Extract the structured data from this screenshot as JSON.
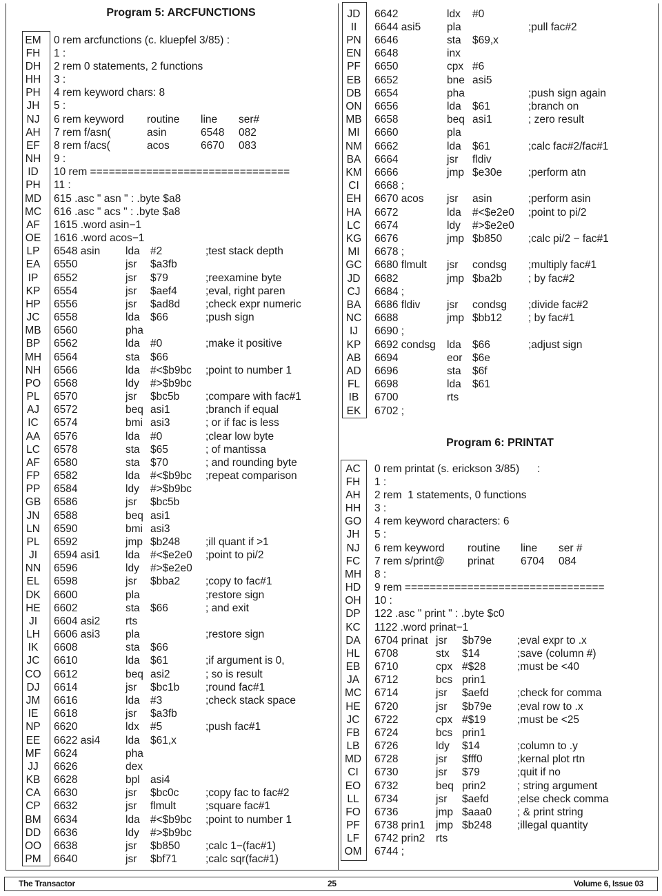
{
  "program5": {
    "title": "Program 5: ARCFUNCTIONS",
    "rows": [
      {
        "code": "EM",
        "text": "0 rem arcfunctions (c. kluepfel 3/85) :"
      },
      {
        "code": "FH",
        "text": "1 :"
      },
      {
        "code": "DH",
        "text": "2 rem 0 statements, 2 functions"
      },
      {
        "code": "HH",
        "text": "3 :"
      },
      {
        "code": "PH",
        "text": "4 rem keyword chars: 8"
      },
      {
        "code": "JH",
        "text": "5 :"
      },
      {
        "code": "NJ",
        "table": [
          "6 rem keyword",
          "routine",
          "line",
          "ser#"
        ]
      },
      {
        "code": "AH",
        "table": [
          "7 rem f/asn(",
          "asin",
          "6548",
          "082"
        ]
      },
      {
        "code": "EF",
        "table": [
          "8 rem f/acs(",
          "acos",
          "6670",
          "083"
        ]
      },
      {
        "code": "NH",
        "text": "9 :"
      },
      {
        "code": "ID",
        "text": "10 rem ================================"
      },
      {
        "code": "PH",
        "text": "11 :"
      },
      {
        "code": "MD",
        "text": "615 .asc \" asn \" : .byte $a8"
      },
      {
        "code": "MC",
        "text": "616 .asc \" acs \" : .byte $a8"
      },
      {
        "code": "AF",
        "text": "1615 .word asin−1"
      },
      {
        "code": "OE",
        "text": "1616 .word acos−1"
      },
      {
        "code": "LP",
        "asm": [
          "6548 asin",
          "lda",
          "#2",
          ";test stack depth"
        ]
      },
      {
        "code": "EA",
        "asm": [
          "6550",
          "jsr",
          "$a3fb",
          ""
        ]
      },
      {
        "code": "IP",
        "asm": [
          "6552",
          "jsr",
          "$79",
          ";reexamine byte"
        ]
      },
      {
        "code": "KP",
        "asm": [
          "6554",
          "jsr",
          "$aef4",
          ";eval, right paren"
        ]
      },
      {
        "code": "HP",
        "asm": [
          "6556",
          "jsr",
          "$ad8d",
          ";check expr numeric"
        ]
      },
      {
        "code": "JC",
        "asm": [
          "6558",
          "lda",
          "$66",
          ";push sign"
        ]
      },
      {
        "code": "MB",
        "asm": [
          "6560",
          "pha",
          "",
          ""
        ]
      },
      {
        "code": "BP",
        "asm": [
          "6562",
          "lda",
          "#0",
          ";make it positive"
        ]
      },
      {
        "code": "MH",
        "asm": [
          "6564",
          "sta",
          "$66",
          ""
        ]
      },
      {
        "code": "NH",
        "asm": [
          "6566",
          "lda",
          "#<$b9bc",
          ";point to number 1"
        ]
      },
      {
        "code": "PO",
        "asm": [
          "6568",
          "ldy",
          "#>$b9bc",
          ""
        ]
      },
      {
        "code": "PL",
        "asm": [
          "6570",
          "jsr",
          "$bc5b",
          ";compare with fac#1"
        ]
      },
      {
        "code": "AJ",
        "asm": [
          "6572",
          "beq",
          "asi1",
          ";branch if equal"
        ]
      },
      {
        "code": "IC",
        "asm": [
          "6574",
          "bmi",
          "asi3",
          "; or if fac is less"
        ]
      },
      {
        "code": "AA",
        "asm": [
          "6576",
          "lda",
          "#0",
          ";clear low byte"
        ]
      },
      {
        "code": "LC",
        "asm": [
          "6578",
          "sta",
          "$65",
          "; of mantissa"
        ]
      },
      {
        "code": "AF",
        "asm": [
          "6580",
          "sta",
          "$70",
          "; and rounding byte"
        ]
      },
      {
        "code": "FP",
        "asm": [
          "6582",
          "lda",
          "#<$b9bc",
          ";repeat comparison"
        ]
      },
      {
        "code": "PP",
        "asm": [
          "6584",
          "ldy",
          "#>$b9bc",
          ""
        ]
      },
      {
        "code": "GB",
        "asm": [
          "6586",
          "jsr",
          "$bc5b",
          ""
        ]
      },
      {
        "code": "JN",
        "asm": [
          "6588",
          "beq",
          "asi1",
          ""
        ]
      },
      {
        "code": "LN",
        "asm": [
          "6590",
          "bmi",
          "asi3",
          ""
        ]
      },
      {
        "code": "PL",
        "asm": [
          "6592",
          "jmp",
          "$b248",
          ";ill quant if >1"
        ]
      },
      {
        "code": "JI",
        "asm": [
          "6594 asi1",
          "lda",
          "#<$e2e0",
          ";point to pi/2"
        ]
      },
      {
        "code": "NN",
        "asm": [
          "6596",
          "ldy",
          "#>$e2e0",
          ""
        ]
      },
      {
        "code": "EL",
        "asm": [
          "6598",
          "jsr",
          "$bba2",
          ";copy to fac#1"
        ]
      },
      {
        "code": "DK",
        "asm": [
          "6600",
          "pla",
          "",
          ";restore sign"
        ]
      },
      {
        "code": "HE",
        "asm": [
          "6602",
          "sta",
          "$66",
          "; and exit"
        ]
      },
      {
        "code": "JI",
        "asm": [
          "6604 asi2",
          "rts",
          "",
          ""
        ]
      },
      {
        "code": "LH",
        "asm": [
          "6606 asi3",
          "pla",
          "",
          ";restore sign"
        ]
      },
      {
        "code": "IK",
        "asm": [
          "6608",
          "sta",
          "$66",
          ""
        ]
      },
      {
        "code": "JC",
        "asm": [
          "6610",
          "lda",
          "$61",
          ";if argument is 0,"
        ]
      },
      {
        "code": "CO",
        "asm": [
          "6612",
          "beq",
          "asi2",
          "; so is result"
        ]
      },
      {
        "code": "DJ",
        "asm": [
          "6614",
          "jsr",
          "$bc1b",
          ";round fac#1"
        ]
      },
      {
        "code": "JM",
        "asm": [
          "6616",
          "lda",
          "#3",
          ";check stack space"
        ]
      },
      {
        "code": "IE",
        "asm": [
          "6618",
          "jsr",
          "$a3fb",
          ""
        ]
      },
      {
        "code": "NP",
        "asm": [
          "6620",
          "ldx",
          "#5",
          ";push fac#1"
        ]
      },
      {
        "code": "EE",
        "asm": [
          "6622 asi4",
          "lda",
          "$61,x",
          ""
        ]
      },
      {
        "code": "MF",
        "asm": [
          "6624",
          "pha",
          "",
          ""
        ]
      },
      {
        "code": "JJ",
        "asm": [
          "6626",
          "dex",
          "",
          ""
        ]
      },
      {
        "code": "KB",
        "asm": [
          "6628",
          "bpl",
          "asi4",
          ""
        ]
      },
      {
        "code": "CA",
        "asm": [
          "6630",
          "jsr",
          "$bc0c",
          ";copy fac to fac#2"
        ]
      },
      {
        "code": "CP",
        "asm": [
          "6632",
          "jsr",
          "flmult",
          ";square fac#1"
        ]
      },
      {
        "code": "BM",
        "asm": [
          "6634",
          "lda",
          "#<$b9bc",
          ";point to number 1"
        ]
      },
      {
        "code": "DD",
        "asm": [
          "6636",
          "ldy",
          "#>$b9bc",
          ""
        ]
      },
      {
        "code": "OO",
        "asm": [
          "6638",
          "jsr",
          "$b850",
          ";calc 1−(fac#1)"
        ]
      },
      {
        "code": "PM",
        "asm": [
          "6640",
          "jsr",
          "$bf71",
          ";calc sqr(fac#1)"
        ]
      }
    ],
    "continued_rows": [
      {
        "code": "JD",
        "asm": [
          "6642",
          "ldx",
          "#0",
          ""
        ]
      },
      {
        "code": "II",
        "asm": [
          "6644 asi5",
          "pla",
          "",
          ";pull fac#2"
        ]
      },
      {
        "code": "PN",
        "asm": [
          "6646",
          "sta",
          "$69,x",
          ""
        ]
      },
      {
        "code": "EN",
        "asm": [
          "6648",
          "inx",
          "",
          ""
        ]
      },
      {
        "code": "PF",
        "asm": [
          "6650",
          "cpx",
          "#6",
          ""
        ]
      },
      {
        "code": "EB",
        "asm": [
          "6652",
          "bne",
          "asi5",
          ""
        ]
      },
      {
        "code": "DB",
        "asm": [
          "6654",
          "pha",
          "",
          ";push sign again"
        ]
      },
      {
        "code": "ON",
        "asm": [
          "6656",
          "lda",
          "$61",
          ";branch on"
        ]
      },
      {
        "code": "MB",
        "asm": [
          "6658",
          "beq",
          "asi1",
          "; zero result"
        ]
      },
      {
        "code": "MI",
        "asm": [
          "6660",
          "pla",
          "",
          ""
        ]
      },
      {
        "code": "NM",
        "asm": [
          "6662",
          "lda",
          "$61",
          ";calc fac#2/fac#1"
        ]
      },
      {
        "code": "BA",
        "asm": [
          "6664",
          "jsr",
          "fldiv",
          ""
        ]
      },
      {
        "code": "KM",
        "asm": [
          "6666",
          "jmp",
          "$e30e",
          ";perform atn"
        ]
      },
      {
        "code": "CI",
        "text": "6668 ;"
      },
      {
        "code": "EH",
        "asm": [
          "6670 acos",
          "jsr",
          "asin",
          ";perform asin"
        ]
      },
      {
        "code": "HA",
        "asm": [
          "6672",
          "lda",
          "#<$e2e0",
          ";point to pi/2"
        ]
      },
      {
        "code": "LC",
        "asm": [
          "6674",
          "ldy",
          "#>$e2e0",
          ""
        ]
      },
      {
        "code": "KG",
        "asm": [
          "6676",
          "jmp",
          "$b850",
          ";calc pi/2 − fac#1"
        ]
      },
      {
        "code": "MI",
        "text": "6678 ;"
      },
      {
        "code": "GC",
        "asm": [
          "6680 flmult",
          "jsr",
          "condsg",
          ";multiply fac#1"
        ]
      },
      {
        "code": "JD",
        "asm": [
          "6682",
          "jmp",
          "$ba2b",
          "; by fac#2"
        ]
      },
      {
        "code": "CJ",
        "text": "6684 ;"
      },
      {
        "code": "BA",
        "asm": [
          "6686 fldiv",
          "jsr",
          "condsg",
          ";divide fac#2"
        ]
      },
      {
        "code": "NC",
        "asm": [
          "6688",
          "jmp",
          "$bb12",
          "; by fac#1"
        ]
      },
      {
        "code": "IJ",
        "text": "6690 ;"
      },
      {
        "code": "KP",
        "asm": [
          "6692 condsg",
          "lda",
          "$66",
          ";adjust sign"
        ]
      },
      {
        "code": "AB",
        "asm": [
          "6694",
          "eor",
          "$6e",
          ""
        ]
      },
      {
        "code": "AD",
        "asm": [
          "6696",
          "sta",
          "$6f",
          ""
        ]
      },
      {
        "code": "FL",
        "asm": [
          "6698",
          "lda",
          "$61",
          ""
        ]
      },
      {
        "code": "IB",
        "asm": [
          "6700",
          "rts",
          "",
          ""
        ]
      },
      {
        "code": "EK",
        "text": "6702 ;"
      }
    ]
  },
  "program6": {
    "title": "Program 6: PRINTAT",
    "rows": [
      {
        "code": "AC",
        "text": "0 rem printat (s. erickson 3/85)      :"
      },
      {
        "code": "FH",
        "text": "1 :"
      },
      {
        "code": "AH",
        "text": "2 rem  1 statements, 0 functions"
      },
      {
        "code": "HH",
        "text": "3 :"
      },
      {
        "code": "GO",
        "text": "4 rem keyword characters: 6"
      },
      {
        "code": "JH",
        "text": "5 :"
      },
      {
        "code": "NJ",
        "table": [
          "6 rem keyword",
          "routine",
          "line",
          "ser #"
        ]
      },
      {
        "code": "FC",
        "table": [
          "7 rem s/print@",
          "prinat",
          "6704",
          "084"
        ]
      },
      {
        "code": "MH",
        "text": "8 :"
      },
      {
        "code": "HD",
        "text": "9 rem ================================"
      },
      {
        "code": "OH",
        "text": "10 :"
      },
      {
        "code": "DP",
        "text": "122 .asc \" print \" : .byte $c0"
      },
      {
        "code": "KC",
        "text": "1122 .word prinat−1"
      },
      {
        "code": "DA",
        "asm": [
          "6704 prinat",
          "jsr",
          "$b79e",
          ";eval expr to .x"
        ]
      },
      {
        "code": "HL",
        "asm": [
          "6708",
          "stx",
          "$14",
          ";save (column #)"
        ]
      },
      {
        "code": "EB",
        "asm": [
          "6710",
          "cpx",
          "#$28",
          ";must be <40"
        ]
      },
      {
        "code": "JA",
        "asm": [
          "6712",
          "bcs",
          "prin1",
          ""
        ]
      },
      {
        "code": "MC",
        "asm": [
          "6714",
          "jsr",
          "$aefd",
          ";check for comma"
        ]
      },
      {
        "code": "HE",
        "asm": [
          "6720",
          "jsr",
          "$b79e",
          ";eval row to .x"
        ]
      },
      {
        "code": "JC",
        "asm": [
          "6722",
          "cpx",
          "#$19",
          ";must be <25"
        ]
      },
      {
        "code": "FB",
        "asm": [
          "6724",
          "bcs",
          "prin1",
          ""
        ]
      },
      {
        "code": "LB",
        "asm": [
          "6726",
          "ldy",
          "$14",
          ";column to .y"
        ]
      },
      {
        "code": "MD",
        "asm": [
          "6728",
          "jsr",
          "$fff0",
          ";kernal plot rtn"
        ]
      },
      {
        "code": "CI",
        "asm": [
          "6730",
          "jsr",
          "$79",
          ";quit if no"
        ]
      },
      {
        "code": "EO",
        "asm": [
          "6732",
          "beq",
          "prin2",
          "; string argument"
        ]
      },
      {
        "code": "LL",
        "asm": [
          "6734",
          "jsr",
          "$aefd",
          ";else check comma"
        ]
      },
      {
        "code": "FO",
        "asm": [
          "6736",
          "jmp",
          "$aaa0",
          "; & print string"
        ]
      },
      {
        "code": "PF",
        "asm": [
          "6738 prin1",
          "jmp",
          "$b248",
          ";illegal quantity"
        ]
      },
      {
        "code": "LF",
        "asm": [
          "6742 prin2",
          "rts",
          "",
          ""
        ]
      },
      {
        "code": "OM",
        "text": "6744 ;"
      }
    ]
  },
  "footer": {
    "magazine": "The Transactor",
    "page": "25",
    "issue": "Volume 6, Issue 03"
  }
}
